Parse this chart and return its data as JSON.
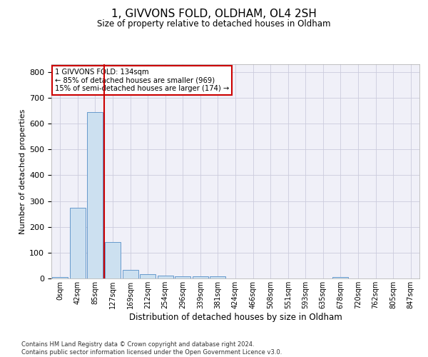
{
  "title": "1, GIVVONS FOLD, OLDHAM, OL4 2SH",
  "subtitle": "Size of property relative to detached houses in Oldham",
  "xlabel": "Distribution of detached houses by size in Oldham",
  "ylabel": "Number of detached properties",
  "bar_labels": [
    "0sqm",
    "42sqm",
    "85sqm",
    "127sqm",
    "169sqm",
    "212sqm",
    "254sqm",
    "296sqm",
    "339sqm",
    "381sqm",
    "424sqm",
    "466sqm",
    "508sqm",
    "551sqm",
    "593sqm",
    "635sqm",
    "678sqm",
    "720sqm",
    "762sqm",
    "805sqm",
    "847sqm"
  ],
  "bar_values": [
    5,
    275,
    645,
    140,
    33,
    17,
    12,
    7,
    7,
    7,
    0,
    0,
    0,
    0,
    0,
    0,
    5,
    0,
    0,
    0,
    0
  ],
  "bar_color": "#cce0f0",
  "bar_edge_color": "#6699cc",
  "vline_x": 3,
  "vline_color": "#cc0000",
  "annotation_text": "1 GIVVONS FOLD: 134sqm\n← 85% of detached houses are smaller (969)\n15% of semi-detached houses are larger (174) →",
  "annotation_box_color": "#cc0000",
  "ylim": [
    0,
    830
  ],
  "yticks": [
    0,
    100,
    200,
    300,
    400,
    500,
    600,
    700,
    800
  ],
  "grid_color": "#ccccdd",
  "background_color": "#f0f0f8",
  "footer_line1": "Contains HM Land Registry data © Crown copyright and database right 2024.",
  "footer_line2": "Contains public sector information licensed under the Open Government Licence v3.0."
}
